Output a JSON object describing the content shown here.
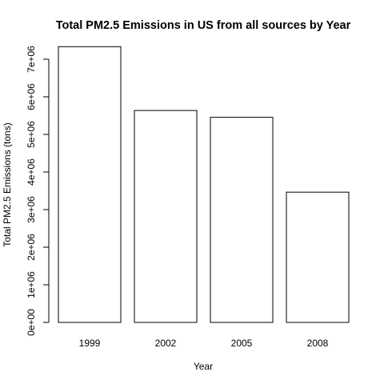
{
  "chart_data": {
    "type": "bar",
    "title": "Total PM2.5 Emissions in US from all sources by Year",
    "xlabel": "Year",
    "ylabel": "Total PM2.5 Emissions (tons)",
    "categories": [
      "1999",
      "2002",
      "2005",
      "2008"
    ],
    "values": [
      7332967,
      5635780,
      5454703,
      3464206
    ],
    "ylim": [
      0,
      7000000
    ],
    "yticks": [
      0,
      1000000,
      2000000,
      3000000,
      4000000,
      5000000,
      6000000,
      7000000
    ],
    "ytick_labels": [
      "0e+00",
      "1e+06",
      "2e+06",
      "3e+06",
      "4e+06",
      "5e+06",
      "6e+06",
      "7e+06"
    ],
    "bar_fill": "#ffffff",
    "bar_stroke": "#000000",
    "grid": false,
    "legend": "none"
  }
}
